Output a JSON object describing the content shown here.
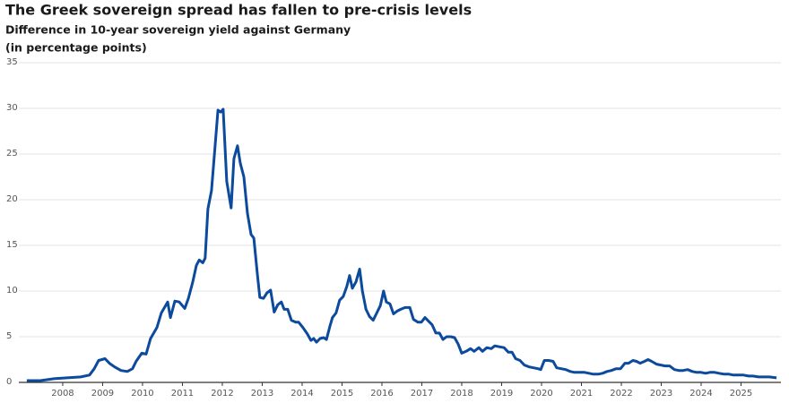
{
  "chart_data": {
    "type": "line",
    "title": "The Greek sovereign spread has fallen to pre-crisis levels",
    "subtitle": "Difference in 10-year sovereign yield against Germany",
    "y_label": "(in percentage points)",
    "color": "#0b4a9c",
    "grid": true,
    "xlim": [
      2006.9,
      2026.0
    ],
    "xticks": [
      2008,
      2009,
      2010,
      2011,
      2012,
      2013,
      2014,
      2015,
      2016,
      2017,
      2018,
      2019,
      2020,
      2021,
      2022,
      2023,
      2024,
      2025
    ],
    "ylim": [
      0,
      35
    ],
    "yticks": [
      0,
      5,
      10,
      15,
      20,
      25,
      30,
      35
    ],
    "x": [
      2007.1,
      2007.44,
      2007.78,
      2008.11,
      2008.45,
      2008.67,
      2008.79,
      2008.9,
      2009.06,
      2009.17,
      2009.3,
      2009.46,
      2009.62,
      2009.75,
      2009.84,
      2009.98,
      2010.09,
      2010.2,
      2010.36,
      2010.47,
      2010.63,
      2010.7,
      2010.81,
      2010.92,
      2011.06,
      2011.15,
      2011.26,
      2011.35,
      2011.42,
      2011.51,
      2011.57,
      2011.64,
      2011.73,
      2011.82,
      2011.89,
      2011.96,
      2012.02,
      2012.11,
      2012.22,
      2012.29,
      2012.38,
      2012.45,
      2012.54,
      2012.63,
      2012.72,
      2012.79,
      2012.88,
      2012.94,
      2013.03,
      2013.12,
      2013.21,
      2013.3,
      2013.39,
      2013.48,
      2013.55,
      2013.64,
      2013.73,
      2013.84,
      2013.91,
      2014.02,
      2014.13,
      2014.22,
      2014.29,
      2014.36,
      2014.45,
      2014.54,
      2014.61,
      2014.7,
      2014.76,
      2014.85,
      2014.94,
      2015.03,
      2015.12,
      2015.19,
      2015.26,
      2015.35,
      2015.44,
      2015.51,
      2015.6,
      2015.69,
      2015.78,
      2015.87,
      2015.96,
      2016.04,
      2016.11,
      2016.2,
      2016.29,
      2016.38,
      2016.47,
      2016.58,
      2016.7,
      2016.79,
      2016.9,
      2016.99,
      2017.08,
      2017.17,
      2017.26,
      2017.35,
      2017.44,
      2017.53,
      2017.62,
      2017.73,
      2017.82,
      2017.91,
      2018.0,
      2018.11,
      2018.22,
      2018.31,
      2018.43,
      2018.52,
      2018.63,
      2018.74,
      2018.83,
      2018.94,
      2019.06,
      2019.17,
      2019.26,
      2019.35,
      2019.46,
      2019.57,
      2019.69,
      2019.8,
      2019.91,
      2019.98,
      2020.07,
      2020.18,
      2020.29,
      2020.38,
      2020.49,
      2020.61,
      2020.72,
      2020.83,
      2020.97,
      2021.08,
      2021.19,
      2021.3,
      2021.42,
      2021.53,
      2021.64,
      2021.75,
      2021.87,
      2021.98,
      2022.09,
      2022.18,
      2022.29,
      2022.38,
      2022.47,
      2022.58,
      2022.67,
      2022.76,
      2022.88,
      2022.99,
      2023.1,
      2023.21,
      2023.33,
      2023.44,
      2023.55,
      2023.66,
      2023.78,
      2023.89,
      2024.0,
      2024.11,
      2024.22,
      2024.34,
      2024.45,
      2024.58,
      2024.7,
      2024.81,
      2024.94,
      2025.06,
      2025.19,
      2025.3,
      2025.44,
      2025.57,
      2025.71,
      2025.89
    ],
    "values": [
      0.2,
      0.2,
      0.4,
      0.5,
      0.6,
      0.8,
      1.5,
      2.4,
      2.6,
      2.1,
      1.7,
      1.3,
      1.2,
      1.5,
      2.3,
      3.2,
      3.1,
      4.8,
      6.0,
      7.6,
      8.8,
      7.1,
      8.9,
      8.8,
      8.1,
      9.2,
      11.0,
      12.8,
      13.4,
      13.1,
      13.6,
      19.0,
      21.0,
      26.0,
      29.8,
      29.6,
      29.9,
      22.0,
      19.1,
      24.5,
      25.9,
      24.0,
      22.5,
      18.5,
      16.2,
      15.8,
      11.8,
      9.3,
      9.2,
      9.8,
      10.1,
      7.7,
      8.5,
      8.8,
      8.0,
      8.0,
      6.8,
      6.6,
      6.6,
      6.0,
      5.3,
      4.6,
      4.8,
      4.4,
      4.8,
      4.9,
      4.7,
      6.2,
      7.1,
      7.6,
      9.0,
      9.4,
      10.5,
      11.7,
      10.3,
      11.0,
      12.4,
      10.0,
      8.0,
      7.2,
      6.8,
      7.6,
      8.4,
      10.0,
      8.8,
      8.6,
      7.5,
      7.8,
      8.0,
      8.2,
      8.2,
      6.9,
      6.6,
      6.6,
      7.1,
      6.7,
      6.3,
      5.4,
      5.4,
      4.7,
      5.0,
      5.0,
      4.9,
      4.2,
      3.2,
      3.4,
      3.7,
      3.4,
      3.8,
      3.4,
      3.8,
      3.7,
      4.0,
      3.9,
      3.8,
      3.3,
      3.3,
      2.6,
      2.4,
      1.9,
      1.7,
      1.6,
      1.5,
      1.4,
      2.4,
      2.4,
      2.3,
      1.6,
      1.5,
      1.4,
      1.2,
      1.1,
      1.1,
      1.1,
      1.0,
      0.9,
      0.9,
      1.0,
      1.2,
      1.3,
      1.5,
      1.5,
      2.1,
      2.1,
      2.4,
      2.3,
      2.1,
      2.3,
      2.5,
      2.3,
      2.0,
      1.9,
      1.8,
      1.8,
      1.4,
      1.3,
      1.3,
      1.4,
      1.2,
      1.1,
      1.1,
      1.0,
      1.1,
      1.1,
      1.0,
      0.9,
      0.9,
      0.8,
      0.8,
      0.8,
      0.7,
      0.7,
      0.6,
      0.6,
      0.6,
      0.5
    ]
  }
}
